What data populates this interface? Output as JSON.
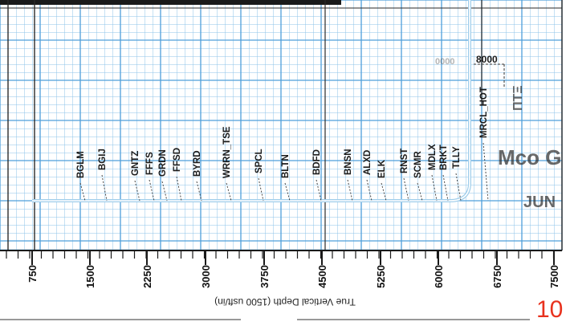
{
  "depth_axis": {
    "label": "True Vertical Depth (1500 usft/in)",
    "ticks": [
      "750",
      "1500",
      "2250",
      "3000",
      "3750",
      "4500",
      "5250",
      "6000",
      "6750",
      "7500"
    ]
  },
  "formations": [
    "BGLM",
    "BGIJ",
    "GNTZ",
    "FFFS",
    "GRDN",
    "FFSD",
    "BYRD",
    "WRRN_TSE",
    "SPCL",
    "BLTN",
    "BDFD",
    "BNSN",
    "ALXD",
    "ELK",
    "RNST",
    "SCMR",
    "MDLX",
    "BRKT",
    "TLLY",
    "MRCL_HOT"
  ],
  "plot_labels": {
    "faded_depth": "0000",
    "depth_marker": "8000"
  },
  "bleed_text": {
    "line1": "Mco G",
    "line2": "JUN"
  },
  "page_number": "10",
  "colors": {
    "grid": "#7ab8e6",
    "grid_major": "#4f9fda",
    "page_number": "#e8321e"
  }
}
